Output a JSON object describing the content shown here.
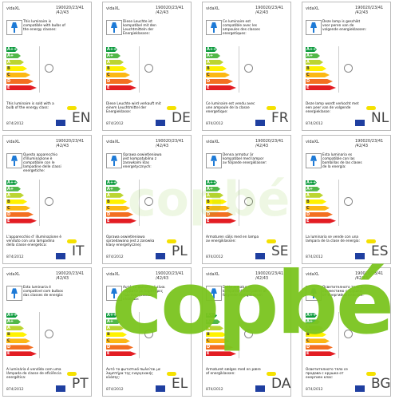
{
  "brand": "vidaXL",
  "code": "190020/23/41 /42/43",
  "regulation": "874/2012",
  "classes": [
    "A++",
    "A+",
    "A",
    "B",
    "C",
    "D",
    "E"
  ],
  "watermark": "copbé",
  "labels": [
    {
      "lang": "EN",
      "top": "This luminaire is compatible with bulbs of the energy classes:",
      "bottom": "This luminaire is sold with a bulb of the energy class:"
    },
    {
      "lang": "DE",
      "top": "Diese Leuchte ist kompatibel mit den Leuchtmitteln der Energieklassen:",
      "bottom": "Diese Leuchte wird verkauft mit einem Leuchtmittel der Energieklasse:"
    },
    {
      "lang": "FR",
      "top": "Ce luminaire est compatible avec les ampoules des classes energetiques:",
      "bottom": "Ce luminaire est vendu avec une ampoule de la classe energetique:"
    },
    {
      "lang": "NL",
      "top": "Deze lamp is geschikt voor peren van de volgende energieklassen:",
      "bottom": "Deze lamp wordt verkocht met een peer van de volgende energieklasse:"
    },
    {
      "lang": "IT",
      "top": "Questo apparecchio d'illuminazione è compatibile con le lampadine delle classi energetiche:",
      "bottom": "L'apparecchio d' illuminazione è venduto con una lampadina della classe energetica:"
    },
    {
      "lang": "PL",
      "top": "Oprawa oswietleniowa jest kompatybilna z zarowkami klas energetycznych:",
      "bottom": "Oprawa oswietleniowa sprzedawana jest z zarowka klasy energetycznej:"
    },
    {
      "lang": "SE",
      "top": "Denna armatur är kompatibel med lampor av följande energiklasser:",
      "bottom": "Armaturen säljs med en lampa av energiklassen:"
    },
    {
      "lang": "ES",
      "top": "Esta luminaria es compatible con las bombillas de las clases de la energía:",
      "bottom": "La luminaria se vende con una lampara de la clase de energia:"
    },
    {
      "lang": "PT",
      "top": "Esta luminaria é compatível com bulbos das classes de energia:",
      "bottom": "A luminária é vendido com uma lâmpada da classe de eficiência energética:"
    },
    {
      "lang": "EL",
      "top": "Αυτό το φωτιστικό είναι συμβατό με λαμπτήρες των ενεργειακών κλάσεων:",
      "bottom": "Αυτό το φωτιστικό πωλείται με λαμπτήρα της ενεργειακής κλάσης:"
    },
    {
      "lang": "DA",
      "top": "Dette armatur er kompatibel med pærer af følgende energiklasser:",
      "bottom": "Armaturet sælges med en pære af energiklassen:"
    },
    {
      "lang": "BG",
      "top": "Осветителното тяло е съвместимо с крушки от енергийни класове:",
      "bottom": "Осветителното тяло се продава с крушка от енергиен клас:"
    }
  ]
}
